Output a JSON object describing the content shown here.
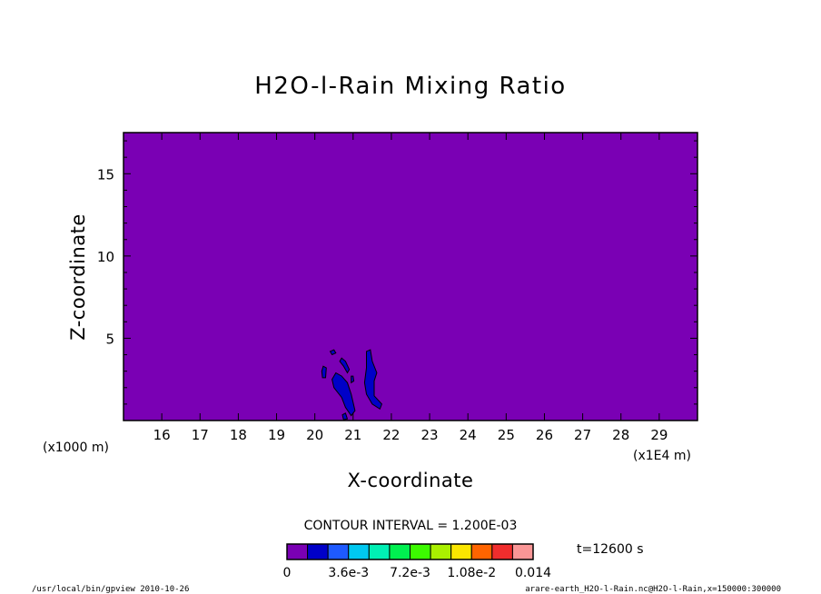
{
  "chart_data": {
    "type": "heatmap",
    "title": "H2O-l-Rain Mixing Ratio",
    "xlabel": "X-coordinate",
    "ylabel": "Z-coordinate",
    "x_unit_left": "(x1000 m)",
    "x_unit_right": "(x1E4 m)",
    "x_ticks": [
      "16",
      "17",
      "18",
      "19",
      "20",
      "21",
      "22",
      "23",
      "24",
      "25",
      "26",
      "27",
      "28",
      "29"
    ],
    "y_ticks": [
      "5",
      "10",
      "15"
    ],
    "xlim": [
      15,
      30
    ],
    "ylim": [
      0,
      17.5
    ],
    "contour_interval_text": "CONTOUR INTERVAL = 1.200E-03",
    "time_text": "t=12600 s",
    "colorbar": {
      "colors": [
        "#7a00b4",
        "#0000c8",
        "#1e5aff",
        "#00c8f0",
        "#00f0b4",
        "#00f050",
        "#3cfa00",
        "#aaf000",
        "#fae600",
        "#ff6400",
        "#f02d2d",
        "#fa9696"
      ],
      "labels": [
        "0",
        "3.6e-3",
        "7.2e-3",
        "1.08e-2",
        "0.014"
      ],
      "range": [
        0,
        0.0144
      ]
    },
    "field": {
      "background_value": 0,
      "background_color": "#7a00b4",
      "contour_color": "#0000c8",
      "contour_value": 0.0012,
      "regions": [
        {
          "points": [
            [
              21.35,
              4.2
            ],
            [
              21.45,
              4.3
            ],
            [
              21.5,
              3.6
            ],
            [
              21.62,
              2.9
            ],
            [
              21.55,
              2.4
            ],
            [
              21.55,
              1.5
            ],
            [
              21.75,
              1.0
            ],
            [
              21.7,
              0.7
            ],
            [
              21.5,
              1.0
            ],
            [
              21.35,
              1.6
            ],
            [
              21.3,
              2.3
            ],
            [
              21.35,
              3.2
            ]
          ]
        },
        {
          "points": [
            [
              20.55,
              2.9
            ],
            [
              20.7,
              2.7
            ],
            [
              20.85,
              2.3
            ],
            [
              20.95,
              1.6
            ],
            [
              21.05,
              0.6
            ],
            [
              20.95,
              0.3
            ],
            [
              20.8,
              0.8
            ],
            [
              20.7,
              1.4
            ],
            [
              20.5,
              2.0
            ],
            [
              20.45,
              2.5
            ]
          ]
        },
        {
          "points": [
            [
              20.7,
              3.8
            ],
            [
              20.8,
              3.6
            ],
            [
              20.9,
              3.1
            ],
            [
              20.85,
              2.9
            ],
            [
              20.75,
              3.3
            ],
            [
              20.65,
              3.6
            ]
          ]
        },
        {
          "points": [
            [
              20.22,
              3.3
            ],
            [
              20.3,
              3.2
            ],
            [
              20.28,
              2.6
            ],
            [
              20.2,
              2.6
            ],
            [
              20.18,
              3.0
            ]
          ]
        },
        {
          "points": [
            [
              20.4,
              4.2
            ],
            [
              20.5,
              4.3
            ],
            [
              20.55,
              4.1
            ],
            [
              20.45,
              4.0
            ]
          ]
        },
        {
          "points": [
            [
              20.95,
              2.7
            ],
            [
              21.0,
              2.7
            ],
            [
              21.02,
              2.4
            ],
            [
              20.95,
              2.3
            ]
          ]
        },
        {
          "points": [
            [
              20.72,
              0.35
            ],
            [
              20.8,
              0.45
            ],
            [
              20.85,
              0.1
            ],
            [
              20.75,
              0.05
            ]
          ]
        }
      ]
    }
  },
  "footer": {
    "left": "/usr/local/bin/gpview  2010-10-26",
    "right": "arare-earth_H2O-l-Rain.nc@H2O-l-Rain,x=150000:300000"
  }
}
